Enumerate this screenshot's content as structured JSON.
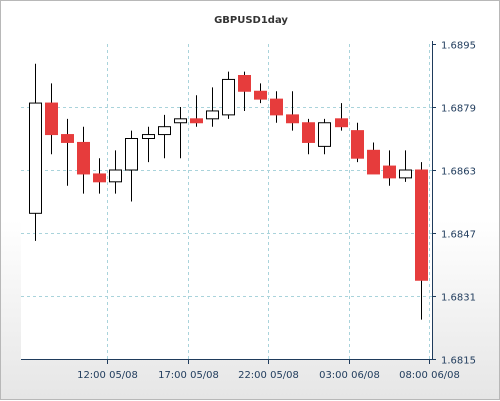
{
  "chart_data": {
    "type": "candlestick",
    "title": "GBPUSD1day",
    "xlabel": "",
    "ylabel": "",
    "ylim": [
      1.6815,
      1.6895
    ],
    "y_ticks": [
      "1.6815",
      "1.6831",
      "1.6847",
      "1.6863",
      "1.6879",
      "1.6895"
    ],
    "x_ticks": [
      {
        "index": 4.5,
        "label": "12:00 05/08"
      },
      {
        "index": 9.5,
        "label": "17:00 05/08"
      },
      {
        "index": 14.5,
        "label": "22:00 05/08"
      },
      {
        "index": 19.5,
        "label": "03:00 06/08"
      },
      {
        "index": 24.5,
        "label": "08:00 06/08"
      }
    ],
    "grid": true,
    "colors": {
      "up_fill": "#ffffff",
      "up_border": "#000000",
      "down_fill": "#e63c3c",
      "wick": "#000000",
      "grid": "#a9d3db",
      "plot_bg": "#ffffff",
      "axis": "#1f3b5c"
    },
    "candles": [
      {
        "open": 1.6852,
        "high": 1.689,
        "low": 1.6845,
        "close": 1.688
      },
      {
        "open": 1.688,
        "high": 1.6885,
        "low": 1.6867,
        "close": 1.6872
      },
      {
        "open": 1.6872,
        "high": 1.6876,
        "low": 1.6859,
        "close": 1.687
      },
      {
        "open": 1.687,
        "high": 1.6874,
        "low": 1.6857,
        "close": 1.6862
      },
      {
        "open": 1.6862,
        "high": 1.6866,
        "low": 1.6857,
        "close": 1.686
      },
      {
        "open": 1.686,
        "high": 1.6868,
        "low": 1.6857,
        "close": 1.6863
      },
      {
        "open": 1.6863,
        "high": 1.6873,
        "low": 1.6855,
        "close": 1.6871
      },
      {
        "open": 1.6871,
        "high": 1.6874,
        "low": 1.6865,
        "close": 1.6872
      },
      {
        "open": 1.6872,
        "high": 1.6877,
        "low": 1.6866,
        "close": 1.6874
      },
      {
        "open": 1.6875,
        "high": 1.6879,
        "low": 1.6866,
        "close": 1.6876
      },
      {
        "open": 1.6876,
        "high": 1.6882,
        "low": 1.6874,
        "close": 1.6875
      },
      {
        "open": 1.6876,
        "high": 1.6884,
        "low": 1.6874,
        "close": 1.6878
      },
      {
        "open": 1.6877,
        "high": 1.6888,
        "low": 1.6876,
        "close": 1.6886
      },
      {
        "open": 1.6887,
        "high": 1.6888,
        "low": 1.6878,
        "close": 1.6883
      },
      {
        "open": 1.6883,
        "high": 1.6885,
        "low": 1.688,
        "close": 1.6881
      },
      {
        "open": 1.6881,
        "high": 1.6883,
        "low": 1.6875,
        "close": 1.6877
      },
      {
        "open": 1.6877,
        "high": 1.6883,
        "low": 1.6873,
        "close": 1.6875
      },
      {
        "open": 1.6875,
        "high": 1.6876,
        "low": 1.6867,
        "close": 1.687
      },
      {
        "open": 1.6869,
        "high": 1.6876,
        "low": 1.6867,
        "close": 1.6875
      },
      {
        "open": 1.6876,
        "high": 1.688,
        "low": 1.6873,
        "close": 1.6874
      },
      {
        "open": 1.6873,
        "high": 1.6875,
        "low": 1.6865,
        "close": 1.6866
      },
      {
        "open": 1.6868,
        "high": 1.687,
        "low": 1.6862,
        "close": 1.6862
      },
      {
        "open": 1.6864,
        "high": 1.6868,
        "low": 1.6859,
        "close": 1.6861
      },
      {
        "open": 1.6861,
        "high": 1.6868,
        "low": 1.686,
        "close": 1.6863
      },
      {
        "open": 1.6863,
        "high": 1.6865,
        "low": 1.6825,
        "close": 1.6835
      }
    ]
  }
}
